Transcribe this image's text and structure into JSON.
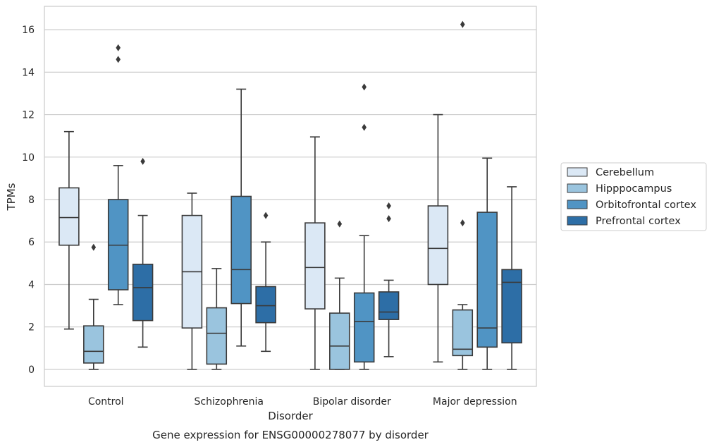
{
  "chart_data": {
    "type": "boxplot",
    "xlabel": "Disorder",
    "ylabel": "TPMs",
    "caption": "Gene expression for ENSG00000278077 by disorder",
    "ylim": [
      -0.8,
      17.1
    ],
    "yticks": [
      0,
      2,
      4,
      6,
      8,
      10,
      12,
      14,
      16
    ],
    "grid": true,
    "legend_position": "right",
    "categories": [
      "Control",
      "Schizophrenia",
      "Bipolar disorder",
      "Major depression"
    ],
    "series": [
      {
        "name": "Cerebellum",
        "color": "#dbe8f5",
        "boxes": [
          {
            "q1": 5.85,
            "median": 7.15,
            "q3": 8.55,
            "whislo": 1.9,
            "whishi": 11.2,
            "fliers": []
          },
          {
            "q1": 1.95,
            "median": 4.6,
            "q3": 7.25,
            "whislo": 0.0,
            "whishi": 8.3,
            "fliers": []
          },
          {
            "q1": 2.85,
            "median": 4.8,
            "q3": 6.9,
            "whislo": 0.0,
            "whishi": 10.95,
            "fliers": []
          },
          {
            "q1": 4.0,
            "median": 5.7,
            "q3": 7.7,
            "whislo": 0.35,
            "whishi": 12.0,
            "fliers": []
          }
        ]
      },
      {
        "name": "Hipppocampus",
        "color": "#9ac4de",
        "boxes": [
          {
            "q1": 0.3,
            "median": 0.85,
            "q3": 2.05,
            "whislo": 0.0,
            "whishi": 3.3,
            "fliers": [
              5.75
            ]
          },
          {
            "q1": 0.25,
            "median": 1.7,
            "q3": 2.9,
            "whislo": 0.0,
            "whishi": 4.75,
            "fliers": []
          },
          {
            "q1": 0.0,
            "median": 1.1,
            "q3": 2.65,
            "whislo": 0.0,
            "whishi": 4.3,
            "fliers": [
              6.85
            ]
          },
          {
            "q1": 0.65,
            "median": 0.95,
            "q3": 2.8,
            "whislo": 0.0,
            "whishi": 3.05,
            "fliers": [
              6.9,
              16.25
            ]
          }
        ]
      },
      {
        "name": "Orbitofrontal cortex",
        "color": "#5094c4",
        "boxes": [
          {
            "q1": 3.75,
            "median": 5.85,
            "q3": 8.0,
            "whislo": 3.05,
            "whishi": 9.6,
            "fliers": [
              14.6,
              15.15
            ]
          },
          {
            "q1": 3.1,
            "median": 4.7,
            "q3": 8.15,
            "whislo": 1.1,
            "whishi": 13.2,
            "fliers": []
          },
          {
            "q1": 0.35,
            "median": 2.25,
            "q3": 3.6,
            "whislo": 0.0,
            "whishi": 6.3,
            "fliers": [
              11.4,
              13.3
            ]
          },
          {
            "q1": 1.05,
            "median": 1.95,
            "q3": 7.4,
            "whislo": 0.0,
            "whishi": 9.95,
            "fliers": []
          }
        ]
      },
      {
        "name": "Prefrontal cortex",
        "color": "#2d6ea6",
        "boxes": [
          {
            "q1": 2.3,
            "median": 3.85,
            "q3": 4.95,
            "whislo": 1.05,
            "whishi": 7.25,
            "fliers": [
              9.8
            ]
          },
          {
            "q1": 2.2,
            "median": 3.0,
            "q3": 3.9,
            "whislo": 0.85,
            "whishi": 6.0,
            "fliers": [
              7.25
            ]
          },
          {
            "q1": 2.35,
            "median": 2.7,
            "q3": 3.65,
            "whislo": 0.6,
            "whishi": 4.2,
            "fliers": [
              7.1,
              7.7
            ]
          },
          {
            "q1": 1.25,
            "median": 4.1,
            "q3": 4.7,
            "whislo": 0.0,
            "whishi": 8.6,
            "fliers": []
          }
        ]
      }
    ]
  }
}
